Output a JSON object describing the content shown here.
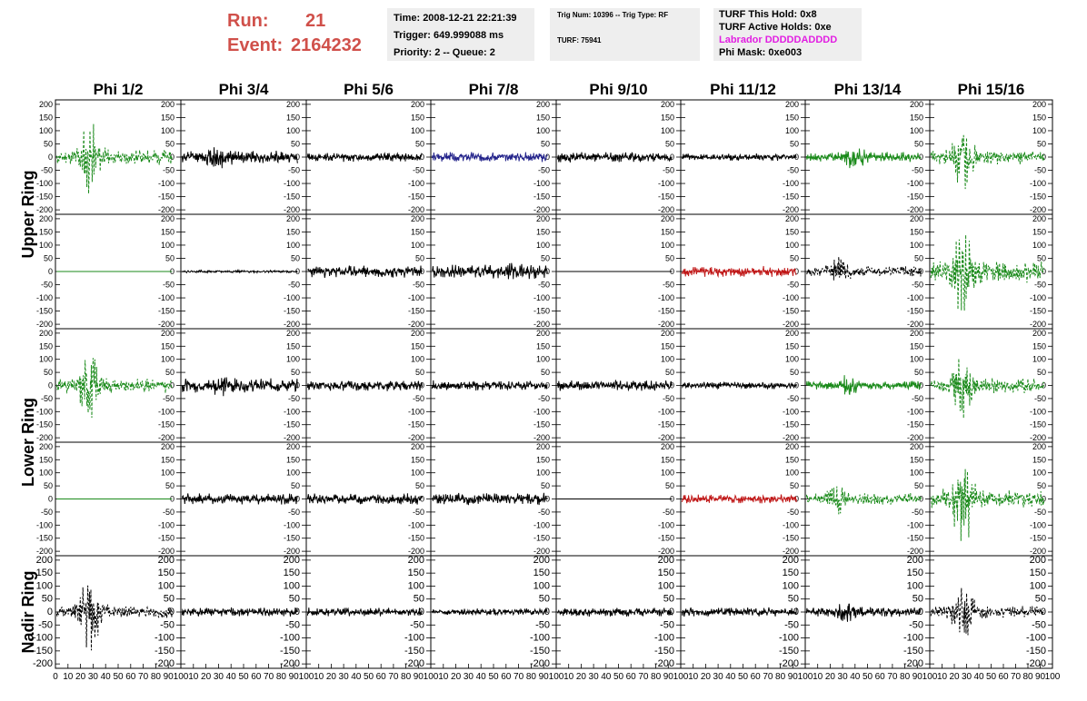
{
  "header": {
    "run_label": "Run:",
    "run_value": "21",
    "event_label": "Event:",
    "event_value": "2164232",
    "time_line": "Time: 2008-12-21 22:21:39",
    "trigger_line": "Trigger: 649.999088 ms",
    "priority_line": "Priority: 2 -- Queue: 2",
    "trig_line": "Trig Num: 10396 -- Trig Type: RF",
    "turf_line": "TURF: 75941",
    "turf_hold_line": "TURF This Hold: 0x8",
    "turf_active_line": "TURF Active Holds: 0xe",
    "labrador_line": "Labrador DDDDDADDDD",
    "phi_mask_line": "Phi Mask: 0xe003"
  },
  "colors": {
    "run_text": "#d0504a",
    "labrador_text": "#e21ee2",
    "info_background": "#eeeeee",
    "trace_black": "#000000",
    "trace_green": "#1a8a1a",
    "trace_blue": "#22228a",
    "trace_red": "#c01818"
  },
  "chart_data": {
    "type": "line",
    "columns": [
      "Phi 1/2",
      "Phi 3/4",
      "Phi 5/6",
      "Phi 7/8",
      "Phi 9/10",
      "Phi 11/12",
      "Phi 13/14",
      "Phi 15/16"
    ],
    "row_labels": [
      {
        "label": "Upper Ring",
        "rows": [
          0,
          1
        ]
      },
      {
        "label": "Lower Ring",
        "rows": [
          2,
          3
        ]
      },
      {
        "label": "Nadir Ring",
        "rows": [
          4
        ]
      }
    ],
    "xlim": [
      0,
      100
    ],
    "ylim": [
      -210,
      210
    ],
    "y_ticks_main": [
      "200",
      "150",
      "100",
      "50",
      "0",
      "-50",
      "-100",
      "-150",
      "-200"
    ],
    "x_ticks": [
      "0",
      "10",
      "20",
      "30",
      "40",
      "50",
      "60",
      "70",
      "80",
      "90",
      "100"
    ],
    "panels": [
      [
        {
          "color": "green",
          "style": "dashed",
          "amplitude": 30,
          "burst_at": 27,
          "burst_amplitude": 150,
          "seed": 11
        },
        {
          "color": "black",
          "style": "solid",
          "amplitude": 25,
          "burst_at": 30,
          "burst_amplitude": 70,
          "seed": 12
        },
        {
          "color": "black",
          "style": "solid",
          "amplitude": 18,
          "burst_at": 0,
          "burst_amplitude": 0,
          "seed": 13
        },
        {
          "color": "blue",
          "style": "solid",
          "amplitude": 20,
          "burst_at": 0,
          "burst_amplitude": 0,
          "seed": 14
        },
        {
          "color": "black",
          "style": "solid",
          "amplitude": 20,
          "burst_at": 0,
          "burst_amplitude": 0,
          "seed": 15
        },
        {
          "color": "black",
          "style": "solid",
          "amplitude": 14,
          "burst_at": 0,
          "burst_amplitude": 0,
          "seed": 16
        },
        {
          "color": "green",
          "style": "solid",
          "amplitude": 20,
          "burst_at": 40,
          "burst_amplitude": 50,
          "seed": 17
        },
        {
          "color": "green",
          "style": "dashed",
          "amplitude": 30,
          "burst_at": 27,
          "burst_amplitude": 150,
          "seed": 18
        }
      ],
      [
        {
          "color": "green",
          "style": "flat",
          "amplitude": 0,
          "burst_at": 0,
          "burst_amplitude": 0,
          "seed": 21
        },
        {
          "color": "black",
          "style": "solid",
          "amplitude": 5,
          "burst_at": 0,
          "burst_amplitude": 0,
          "seed": 22
        },
        {
          "color": "black",
          "style": "solid",
          "amplitude": 25,
          "burst_at": 0,
          "burst_amplitude": 0,
          "seed": 23
        },
        {
          "color": "black",
          "style": "solid",
          "amplitude": 28,
          "burst_at": 72,
          "burst_amplitude": 50,
          "seed": 24
        },
        {
          "color": "black",
          "style": "flat",
          "amplitude": 0,
          "burst_at": 0,
          "burst_amplitude": 0,
          "seed": 25
        },
        {
          "color": "red",
          "style": "solid",
          "amplitude": 22,
          "burst_at": 0,
          "burst_amplitude": 0,
          "seed": 26
        },
        {
          "color": "black",
          "style": "dashed",
          "amplitude": 22,
          "burst_at": 27,
          "burst_amplitude": 85,
          "seed": 27
        },
        {
          "color": "green",
          "style": "dashed",
          "amplitude": 45,
          "burst_at": 27,
          "burst_amplitude": 210,
          "seed": 28
        }
      ],
      [
        {
          "color": "green",
          "style": "dashed",
          "amplitude": 30,
          "burst_at": 27,
          "burst_amplitude": 150,
          "seed": 31
        },
        {
          "color": "black",
          "style": "solid",
          "amplitude": 28,
          "burst_at": 30,
          "burst_amplitude": 55,
          "seed": 32
        },
        {
          "color": "black",
          "style": "solid",
          "amplitude": 22,
          "burst_at": 0,
          "burst_amplitude": 0,
          "seed": 33
        },
        {
          "color": "black",
          "style": "solid",
          "amplitude": 20,
          "burst_at": 0,
          "burst_amplitude": 0,
          "seed": 34
        },
        {
          "color": "black",
          "style": "solid",
          "amplitude": 22,
          "burst_at": 0,
          "burst_amplitude": 0,
          "seed": 35
        },
        {
          "color": "black",
          "style": "solid",
          "amplitude": 15,
          "burst_at": 0,
          "burst_amplitude": 0,
          "seed": 36
        },
        {
          "color": "green",
          "style": "solid",
          "amplitude": 18,
          "burst_at": 35,
          "burst_amplitude": 50,
          "seed": 37
        },
        {
          "color": "green",
          "style": "dashed",
          "amplitude": 30,
          "burst_at": 27,
          "burst_amplitude": 140,
          "seed": 38
        }
      ],
      [
        {
          "color": "green",
          "style": "flat",
          "amplitude": 0,
          "burst_at": 0,
          "burst_amplitude": 0,
          "seed": 41
        },
        {
          "color": "black",
          "style": "solid",
          "amplitude": 22,
          "burst_at": 0,
          "burst_amplitude": 0,
          "seed": 42
        },
        {
          "color": "black",
          "style": "solid",
          "amplitude": 22,
          "burst_at": 0,
          "burst_amplitude": 0,
          "seed": 43
        },
        {
          "color": "black",
          "style": "solid",
          "amplitude": 25,
          "burst_at": 0,
          "burst_amplitude": 0,
          "seed": 44
        },
        {
          "color": "black",
          "style": "flat",
          "amplitude": 0,
          "burst_at": 0,
          "burst_amplitude": 0,
          "seed": 45
        },
        {
          "color": "red",
          "style": "solid",
          "amplitude": 18,
          "burst_at": 0,
          "burst_amplitude": 0,
          "seed": 46
        },
        {
          "color": "green",
          "style": "dashed",
          "amplitude": 25,
          "burst_at": 27,
          "burst_amplitude": 65,
          "seed": 47
        },
        {
          "color": "green",
          "style": "dashed",
          "amplitude": 40,
          "burst_at": 27,
          "burst_amplitude": 210,
          "seed": 48
        }
      ],
      [
        {
          "color": "black",
          "style": "dashed",
          "amplitude": 25,
          "burst_at": 27,
          "burst_amplitude": 190,
          "seed": 51
        },
        {
          "color": "black",
          "style": "solid",
          "amplitude": 18,
          "burst_at": 0,
          "burst_amplitude": 0,
          "seed": 52
        },
        {
          "color": "black",
          "style": "solid",
          "amplitude": 18,
          "burst_at": 0,
          "burst_amplitude": 0,
          "seed": 53
        },
        {
          "color": "black",
          "style": "solid",
          "amplitude": 15,
          "burst_at": 0,
          "burst_amplitude": 0,
          "seed": 54
        },
        {
          "color": "black",
          "style": "solid",
          "amplitude": 18,
          "burst_at": 0,
          "burst_amplitude": 0,
          "seed": 55
        },
        {
          "color": "black",
          "style": "solid",
          "amplitude": 18,
          "burst_at": 0,
          "burst_amplitude": 0,
          "seed": 56
        },
        {
          "color": "black",
          "style": "solid",
          "amplitude": 20,
          "burst_at": 33,
          "burst_amplitude": 45,
          "seed": 57
        },
        {
          "color": "black",
          "style": "dashed",
          "amplitude": 25,
          "burst_at": 27,
          "burst_amplitude": 140,
          "seed": 58
        }
      ]
    ]
  }
}
